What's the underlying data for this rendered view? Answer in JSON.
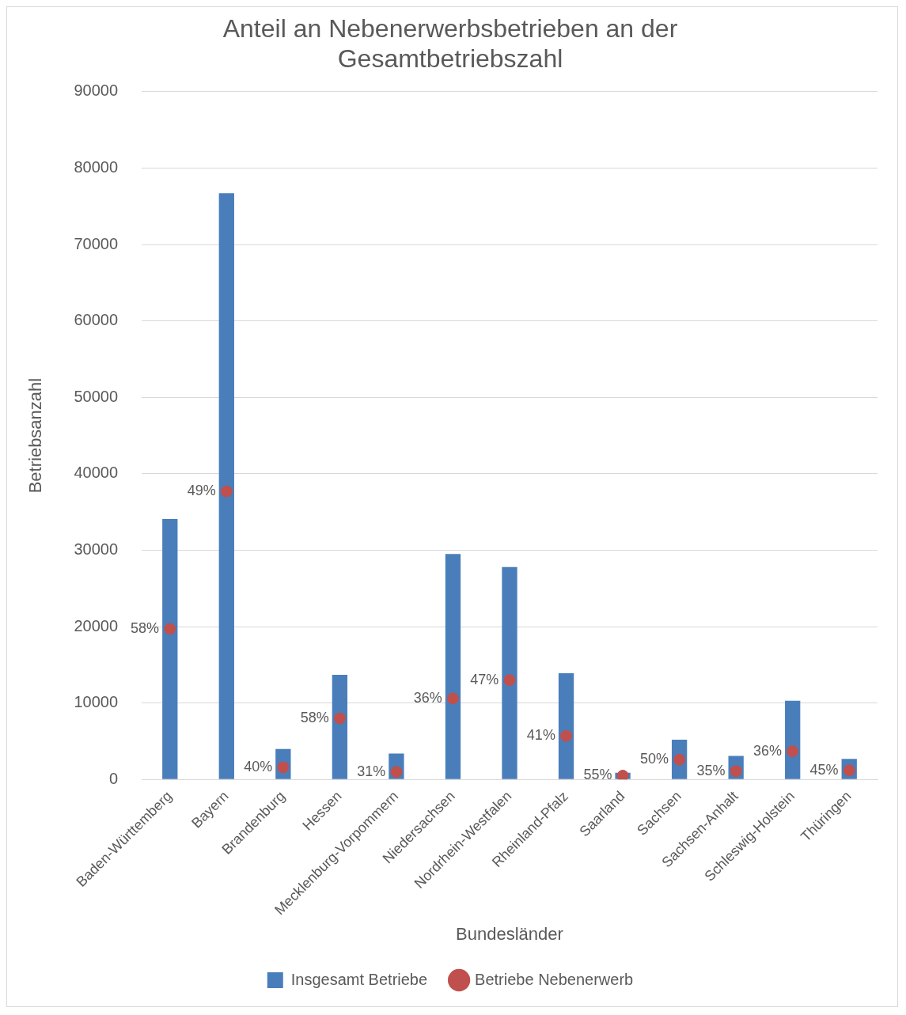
{
  "chart_data": {
    "type": "bar",
    "title": "Anteil an Nebenerwerbsbetrieben an der Gesamtbetriebszahl",
    "xlabel": "Bundesländer",
    "ylabel": "Betriebsanzahl",
    "categories": [
      "Baden-Württemberg",
      "Bayern",
      "Brandenburg",
      "Hessen",
      "Mecklenburg-Vorpommern",
      "Niedersachsen",
      "Nordrhein-Westfalen",
      "Rheinland-Pfalz",
      "Saarland",
      "Sachsen",
      "Sachsen-Anhalt",
      "Schleswig-Holstein",
      "Thüringen"
    ],
    "series": [
      {
        "name": "Insgesamt Betriebe",
        "color": "#4a7ebb",
        "values": [
          34100,
          76700,
          4000,
          13700,
          3400,
          29500,
          27800,
          13900,
          900,
          5200,
          3100,
          10300,
          2700
        ]
      },
      {
        "name": "Betriebe Nebenerwerb",
        "type": "scatter",
        "color": "#c0504d",
        "marker": "circle",
        "values": [
          19700,
          37700,
          1600,
          8000,
          1000,
          10600,
          13000,
          5700,
          500,
          2600,
          1100,
          3700,
          1200
        ]
      }
    ],
    "annotations": [
      {
        "text": "58%",
        "x": "Baden-Württemberg",
        "y": 19700
      },
      {
        "text": "49%",
        "x": "Bayern",
        "y": 37700
      },
      {
        "text": "40%",
        "x": "Brandenburg",
        "y": 1600
      },
      {
        "text": "58%",
        "x": "Hessen",
        "y": 8000
      },
      {
        "text": "31%",
        "x": "Mecklenburg-Vorpommern",
        "y": 1000
      },
      {
        "text": "36%",
        "x": "Niedersachsen",
        "y": 10600
      },
      {
        "text": "47%",
        "x": "Nordrhein-Westfalen",
        "y": 13000
      },
      {
        "text": "41%",
        "x": "Rheinland-Pfalz",
        "y": 5700
      },
      {
        "text": "55%",
        "x": "Saarland",
        "y": 500
      },
      {
        "text": "50%",
        "x": "Sachsen",
        "y": 2600
      },
      {
        "text": "35%",
        "x": "Sachsen-Anhalt",
        "y": 1100
      },
      {
        "text": "36%",
        "x": "Schleswig-Holstein",
        "y": 3700
      },
      {
        "text": "45%",
        "x": "Thüringen",
        "y": 1200
      }
    ],
    "ylim": [
      0,
      90000
    ],
    "yticks": [
      0,
      10000,
      20000,
      30000,
      40000,
      50000,
      60000,
      70000,
      80000,
      90000
    ],
    "grid": "y",
    "legend": "bottom"
  }
}
